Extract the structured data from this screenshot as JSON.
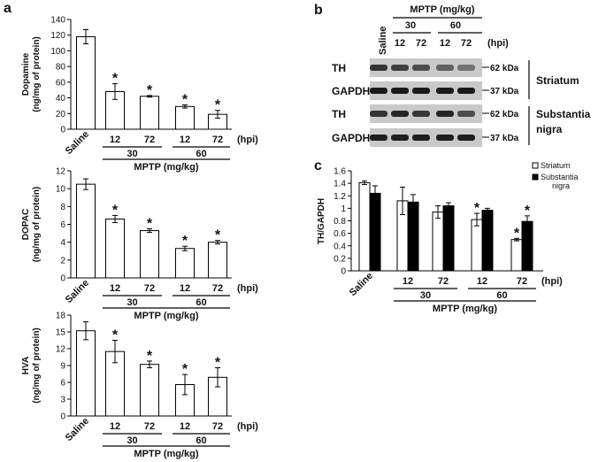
{
  "panel_letters": [
    "a",
    "b",
    "c"
  ],
  "hpi_label": "(hpi)",
  "mptp_label": "MPTP (mg/kg)",
  "saline_label": "Saline",
  "dose_labels": [
    "30",
    "60"
  ],
  "star": "*",
  "chart_data": [
    {
      "type": "bar",
      "categories": [
        "Saline",
        "12",
        "72",
        "12",
        "72"
      ],
      "values": [
        118,
        48,
        42,
        29,
        19
      ],
      "errors": [
        9,
        10,
        1,
        2,
        5
      ],
      "significant": [
        false,
        true,
        true,
        true,
        true
      ],
      "ylabel": [
        "Dopamine",
        "(ng/mg of protein)"
      ],
      "xlabel": "MPTP (mg/kg)",
      "ylim": [
        0,
        140
      ],
      "yticks": [
        0,
        20,
        40,
        60,
        80,
        100,
        120,
        140
      ],
      "bar_color": "#ffffff"
    },
    {
      "type": "bar",
      "categories": [
        "Saline",
        "12",
        "72",
        "12",
        "72"
      ],
      "values": [
        10.5,
        6.6,
        5.3,
        3.3,
        4.0
      ],
      "errors": [
        0.6,
        0.4,
        0.2,
        0.25,
        0.2
      ],
      "significant": [
        false,
        true,
        true,
        true,
        true
      ],
      "ylabel": [
        "DOPAC",
        "(ng/mg of protein)"
      ],
      "xlabel": "MPTP (mg/kg)",
      "ylim": [
        0,
        12
      ],
      "yticks": [
        0,
        2,
        4,
        6,
        8,
        10,
        12
      ],
      "bar_color": "#ffffff"
    },
    {
      "type": "bar",
      "categories": [
        "Saline",
        "12",
        "72",
        "12",
        "72"
      ],
      "values": [
        15.2,
        11.5,
        9.2,
        5.6,
        6.9
      ],
      "errors": [
        1.6,
        2.0,
        0.6,
        1.8,
        1.7
      ],
      "significant": [
        false,
        true,
        true,
        true,
        true
      ],
      "ylabel": [
        "HVA",
        "(ng/mg of protein)"
      ],
      "xlabel": "MPTP (mg/kg)",
      "ylim": [
        0,
        18
      ],
      "yticks": [
        0,
        3,
        6,
        9,
        12,
        15,
        18
      ],
      "bar_color": "#ffffff"
    },
    {
      "type": "bar",
      "categories": [
        "Saline",
        "12",
        "72",
        "12",
        "72"
      ],
      "series": [
        {
          "name": "Striatum",
          "color": "#ffffff",
          "values": [
            1.41,
            1.12,
            0.94,
            0.82,
            0.5
          ],
          "errors": [
            0.03,
            0.22,
            0.1,
            0.1,
            0.02
          ],
          "significant": [
            false,
            false,
            false,
            true,
            true
          ]
        },
        {
          "name": "Substantia nigra",
          "color": "#000000",
          "values": [
            1.24,
            1.1,
            1.04,
            0.97,
            0.79
          ],
          "errors": [
            0.12,
            0.12,
            0.05,
            0.03,
            0.09
          ],
          "significant": [
            false,
            false,
            false,
            false,
            true
          ]
        }
      ],
      "ylabel": "TH/GAPDH",
      "xlabel": "MPTP (mg/kg)",
      "ylim": [
        0,
        1.6
      ],
      "yticks": [
        "0",
        "0.2",
        "0.4",
        "0.6",
        "0.8",
        "1",
        "1.2",
        "1.4",
        "1.6"
      ],
      "legend": "top-right"
    }
  ],
  "blot": {
    "header": "MPTP (mg/kg)",
    "saline_label": "Saline",
    "doses": [
      "30",
      "60"
    ],
    "times": [
      "12",
      "72",
      "12",
      "72"
    ],
    "hpi_label": "(hpi)",
    "rows": [
      {
        "label": "TH",
        "kda": "62 kDa",
        "intensity": [
          0.8,
          0.75,
          0.7,
          0.62,
          0.55
        ]
      },
      {
        "label": "GAPDH",
        "kda": "37 kDa",
        "intensity": [
          0.9,
          0.9,
          0.9,
          0.9,
          0.9
        ]
      },
      {
        "label": "TH",
        "kda": "62 kDa",
        "intensity": [
          0.8,
          0.85,
          0.78,
          0.85,
          0.7
        ]
      },
      {
        "label": "GAPDH",
        "kda": "37 kDa",
        "intensity": [
          0.88,
          0.88,
          0.88,
          0.88,
          0.88
        ]
      }
    ],
    "regions": [
      [
        "Striatum"
      ],
      [
        "Substantia",
        "nigra"
      ]
    ]
  }
}
